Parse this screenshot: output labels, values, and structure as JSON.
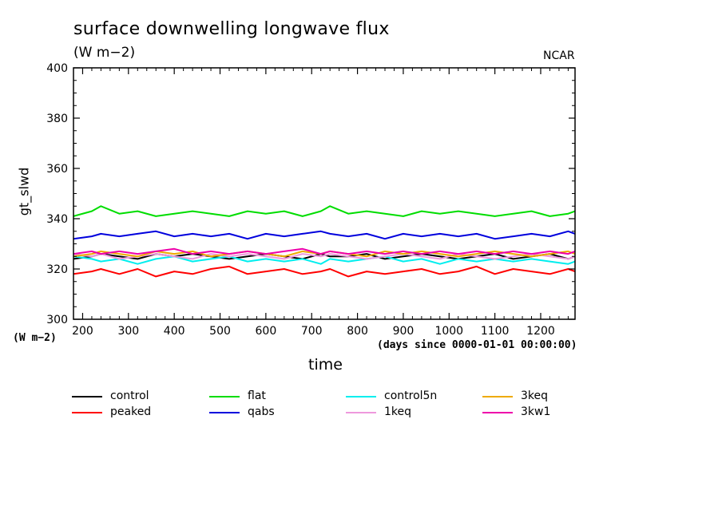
{
  "header": {
    "title": "surface downwelling longwave flux",
    "units": "(W m−2)",
    "credit": "NCAR"
  },
  "axes": {
    "xlabel": "time",
    "xunits": "(days since 0000-01-01 00:00:00)",
    "ylabel": "gt_slwd",
    "yunits_bottom": "(W m−2)"
  },
  "chart_data": {
    "type": "line",
    "title": "surface downwelling longwave flux",
    "xlabel": "time",
    "ylabel": "gt_slwd",
    "xlim": [
      180,
      1275
    ],
    "ylim": [
      300,
      400
    ],
    "x_ticks": [
      200,
      300,
      400,
      500,
      600,
      700,
      800,
      900,
      1000,
      1100,
      1200
    ],
    "y_ticks": [
      300,
      320,
      340,
      360,
      380,
      400
    ],
    "grid": false,
    "legend_position": "bottom",
    "x": [
      180,
      220,
      240,
      280,
      320,
      360,
      400,
      440,
      480,
      520,
      560,
      600,
      640,
      680,
      720,
      740,
      780,
      820,
      860,
      900,
      940,
      980,
      1020,
      1060,
      1100,
      1140,
      1180,
      1220,
      1260,
      1275
    ],
    "series": [
      {
        "name": "control",
        "color": "#000000",
        "values": [
          324,
          325,
          326,
          325,
          324,
          326,
          325,
          326,
          325,
          324,
          325,
          326,
          325,
          324,
          326,
          325,
          325,
          326,
          324,
          325,
          326,
          325,
          324,
          325,
          326,
          324,
          325,
          326,
          324,
          325
        ]
      },
      {
        "name": "peaked",
        "color": "#ff0000",
        "values": [
          318,
          319,
          320,
          318,
          320,
          317,
          319,
          318,
          320,
          321,
          318,
          319,
          320,
          318,
          319,
          320,
          317,
          319,
          318,
          319,
          320,
          318,
          319,
          321,
          318,
          320,
          319,
          318,
          320,
          319
        ]
      },
      {
        "name": "flat",
        "color": "#00dd00",
        "values": [
          341,
          343,
          345,
          342,
          343,
          341,
          342,
          343,
          342,
          341,
          343,
          342,
          343,
          341,
          343,
          345,
          342,
          343,
          342,
          341,
          343,
          342,
          343,
          342,
          341,
          342,
          343,
          341,
          342,
          343
        ]
      },
      {
        "name": "qabs",
        "color": "#0000dd",
        "values": [
          332,
          333,
          334,
          333,
          334,
          335,
          333,
          334,
          333,
          334,
          332,
          334,
          333,
          334,
          335,
          334,
          333,
          334,
          332,
          334,
          333,
          334,
          333,
          334,
          332,
          333,
          334,
          333,
          335,
          334
        ]
      },
      {
        "name": "control5n",
        "color": "#00eeee",
        "values": [
          325,
          324,
          323,
          324,
          322,
          324,
          325,
          323,
          324,
          325,
          323,
          324,
          323,
          324,
          322,
          324,
          323,
          324,
          325,
          323,
          324,
          322,
          324,
          323,
          324,
          323,
          324,
          323,
          322,
          323
        ]
      },
      {
        "name": "1keq",
        "color": "#ee99dd",
        "values": [
          326,
          325,
          326,
          324,
          325,
          326,
          325,
          324,
          326,
          325,
          326,
          325,
          324,
          326,
          325,
          326,
          325,
          324,
          325,
          326,
          325,
          324,
          326,
          325,
          324,
          325,
          326,
          325,
          324,
          325
        ]
      },
      {
        "name": "3keq",
        "color": "#eeaa00",
        "values": [
          325,
          326,
          327,
          326,
          325,
          327,
          326,
          327,
          325,
          326,
          327,
          326,
          325,
          327,
          326,
          327,
          326,
          325,
          327,
          326,
          327,
          326,
          325,
          326,
          327,
          326,
          325,
          326,
          327,
          326
        ]
      },
      {
        "name": "3kw1",
        "color": "#ee00aa",
        "values": [
          326,
          327,
          326,
          327,
          326,
          327,
          328,
          326,
          327,
          326,
          327,
          326,
          327,
          328,
          326,
          327,
          326,
          327,
          326,
          327,
          326,
          327,
          326,
          327,
          326,
          327,
          326,
          327,
          326,
          327
        ]
      }
    ]
  }
}
